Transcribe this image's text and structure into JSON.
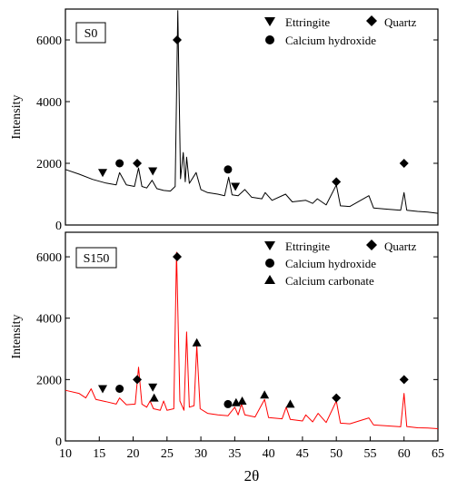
{
  "chart_data": [
    {
      "type": "line",
      "panel_label": "S0",
      "ylabel": "Intensity",
      "xlim": [
        10,
        65
      ],
      "ylim": [
        0,
        7000
      ],
      "yticks": [
        0,
        2000,
        4000,
        6000
      ],
      "series": [
        {
          "color": "#000000",
          "points": [
            [
              10,
              1800
            ],
            [
              12,
              1650
            ],
            [
              14,
              1480
            ],
            [
              16,
              1360
            ],
            [
              17.5,
              1300
            ],
            [
              18,
              1700
            ],
            [
              19,
              1300
            ],
            [
              20.2,
              1250
            ],
            [
              20.8,
              1850
            ],
            [
              21.3,
              1250
            ],
            [
              22,
              1200
            ],
            [
              22.8,
              1450
            ],
            [
              23.5,
              1180
            ],
            [
              24.5,
              1120
            ],
            [
              25.5,
              1100
            ],
            [
              26.2,
              1250
            ],
            [
              26.6,
              6950
            ],
            [
              27,
              1500
            ],
            [
              27.4,
              2350
            ],
            [
              27.7,
              1400
            ],
            [
              27.9,
              2200
            ],
            [
              28.3,
              1350
            ],
            [
              29.3,
              1700
            ],
            [
              30,
              1150
            ],
            [
              31,
              1050
            ],
            [
              32.5,
              1000
            ],
            [
              33.5,
              950
            ],
            [
              34.1,
              1550
            ],
            [
              34.6,
              980
            ],
            [
              35.5,
              950
            ],
            [
              36.5,
              1150
            ],
            [
              37.5,
              900
            ],
            [
              39,
              850
            ],
            [
              39.5,
              1050
            ],
            [
              40.5,
              800
            ],
            [
              42.5,
              1000
            ],
            [
              43.5,
              750
            ],
            [
              45.5,
              800
            ],
            [
              46.5,
              700
            ],
            [
              47.2,
              850
            ],
            [
              48.5,
              650
            ],
            [
              50,
              1300
            ],
            [
              50.6,
              620
            ],
            [
              52,
              600
            ],
            [
              54.8,
              950
            ],
            [
              55.5,
              550
            ],
            [
              57,
              520
            ],
            [
              59.5,
              480
            ],
            [
              60,
              1050
            ],
            [
              60.4,
              480
            ],
            [
              62,
              440
            ],
            [
              63.5,
              420
            ],
            [
              65,
              380
            ]
          ]
        }
      ],
      "legend": [
        {
          "marker": "triangle-down",
          "label": "Ettringite"
        },
        {
          "marker": "diamond",
          "label": "Quartz"
        },
        {
          "marker": "circle",
          "label": "Calcium hydroxide"
        }
      ],
      "annotations": [
        {
          "marker": "triangle-down",
          "x": 15.5,
          "y": 1700
        },
        {
          "marker": "circle",
          "x": 18,
          "y": 2000
        },
        {
          "marker": "diamond",
          "x": 20.6,
          "y": 2000
        },
        {
          "marker": "triangle-down",
          "x": 22.9,
          "y": 1750
        },
        {
          "marker": "diamond",
          "x": 26.5,
          "y": 6000
        },
        {
          "marker": "circle",
          "x": 34,
          "y": 1800
        },
        {
          "marker": "triangle-down",
          "x": 35.1,
          "y": 1250
        },
        {
          "marker": "diamond",
          "x": 50,
          "y": 1400
        },
        {
          "marker": "diamond",
          "x": 60,
          "y": 2000
        }
      ]
    },
    {
      "type": "line",
      "panel_label": "S150",
      "xlabel": "2θ",
      "ylabel": "Intensity",
      "xlim": [
        10,
        65
      ],
      "ylim": [
        0,
        6800
      ],
      "yticks": [
        0,
        2000,
        4000,
        6000
      ],
      "xticks": [
        10,
        15,
        20,
        25,
        30,
        35,
        40,
        45,
        50,
        55,
        60,
        65
      ],
      "series": [
        {
          "color": "#ff0000",
          "points": [
            [
              10,
              1650
            ],
            [
              12,
              1550
            ],
            [
              13,
              1400
            ],
            [
              13.8,
              1700
            ],
            [
              14.5,
              1350
            ],
            [
              16,
              1280
            ],
            [
              17.5,
              1200
            ],
            [
              18,
              1400
            ],
            [
              19,
              1180
            ],
            [
              20.3,
              1200
            ],
            [
              20.8,
              2400
            ],
            [
              21.3,
              1200
            ],
            [
              22,
              1100
            ],
            [
              22.5,
              1300
            ],
            [
              23,
              1050
            ],
            [
              24,
              1000
            ],
            [
              24.5,
              1300
            ],
            [
              25,
              1000
            ],
            [
              26,
              1050
            ],
            [
              26.4,
              6150
            ],
            [
              26.9,
              1300
            ],
            [
              27.5,
              1000
            ],
            [
              27.9,
              3550
            ],
            [
              28.3,
              1100
            ],
            [
              29,
              1150
            ],
            [
              29.4,
              3100
            ],
            [
              29.9,
              1050
            ],
            [
              31,
              900
            ],
            [
              32.5,
              850
            ],
            [
              34,
              820
            ],
            [
              35,
              1100
            ],
            [
              35.5,
              850
            ],
            [
              36,
              1200
            ],
            [
              36.5,
              850
            ],
            [
              38,
              780
            ],
            [
              39.4,
              1350
            ],
            [
              40,
              760
            ],
            [
              42,
              720
            ],
            [
              42.6,
              1100
            ],
            [
              43.2,
              700
            ],
            [
              45,
              650
            ],
            [
              45.5,
              850
            ],
            [
              46.5,
              620
            ],
            [
              47.3,
              900
            ],
            [
              48.5,
              600
            ],
            [
              50,
              1300
            ],
            [
              50.6,
              580
            ],
            [
              52,
              560
            ],
            [
              54.8,
              750
            ],
            [
              55.5,
              520
            ],
            [
              57,
              500
            ],
            [
              59.5,
              460
            ],
            [
              60,
              1550
            ],
            [
              60.4,
              470
            ],
            [
              62,
              430
            ],
            [
              63.5,
              420
            ],
            [
              65,
              400
            ]
          ]
        }
      ],
      "legend": [
        {
          "marker": "triangle-down",
          "label": "Ettringite"
        },
        {
          "marker": "diamond",
          "label": "Quartz"
        },
        {
          "marker": "circle",
          "label": "Calcium hydroxide"
        },
        {
          "marker": "triangle-up",
          "label": "Calcium carbonate"
        }
      ],
      "annotations": [
        {
          "marker": "triangle-down",
          "x": 15.5,
          "y": 1700
        },
        {
          "marker": "circle",
          "x": 18,
          "y": 1700
        },
        {
          "marker": "diamond",
          "x": 20.6,
          "y": 2000
        },
        {
          "marker": "triangle-down",
          "x": 22.9,
          "y": 1750
        },
        {
          "marker": "triangle-up",
          "x": 23.1,
          "y": 1400
        },
        {
          "marker": "diamond",
          "x": 26.5,
          "y": 6000
        },
        {
          "marker": "triangle-up",
          "x": 29.4,
          "y": 3200
        },
        {
          "marker": "circle",
          "x": 34,
          "y": 1200
        },
        {
          "marker": "triangle-up",
          "x": 35.2,
          "y": 1250
        },
        {
          "marker": "triangle-up",
          "x": 36.1,
          "y": 1300
        },
        {
          "marker": "triangle-up",
          "x": 39.4,
          "y": 1500
        },
        {
          "marker": "triangle-up",
          "x": 43.2,
          "y": 1200
        },
        {
          "marker": "diamond",
          "x": 50,
          "y": 1400
        },
        {
          "marker": "diamond",
          "x": 60,
          "y": 2000
        }
      ]
    }
  ]
}
